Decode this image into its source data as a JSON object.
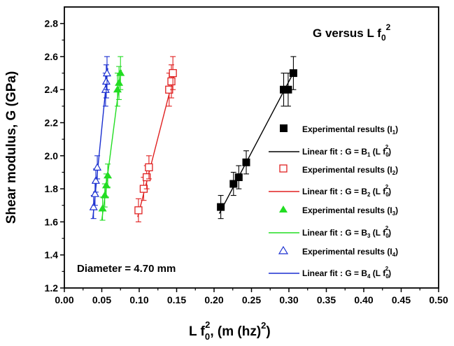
{
  "chart_data": {
    "type": "scatter",
    "title": "G versus L f",
    "title_sub": "0",
    "title_sup": "2",
    "annotation": "Diameter = 4.70 mm",
    "xlabel": {
      "main": "L f",
      "sub": "0",
      "sup": "2",
      "rest": ", (m (hz)",
      "rest_sup": "2",
      "end": ")"
    },
    "ylabel": "Shear modulus, G (GPa)",
    "xlim": [
      0.0,
      0.5
    ],
    "ylim": [
      1.2,
      2.9
    ],
    "xticks": [
      "0.00",
      "0.05",
      "0.10",
      "0.15",
      "0.20",
      "0.25",
      "0.30",
      "0.35",
      "0.40",
      "0.45",
      "0.50"
    ],
    "yticks": [
      "1.2",
      "1.4",
      "1.6",
      "1.8",
      "2.0",
      "2.2",
      "2.4",
      "2.6",
      "2.8"
    ],
    "legend_position": "right",
    "series": [
      {
        "name": "Experimental results (I1)",
        "label_main": "Experimental results (I",
        "label_sub": "1",
        "label_end": ")",
        "fit_main": "Linear fit : G = B",
        "fit_sub": "1",
        "fit_mid": " (L f",
        "fit_sub2": "0",
        "fit_sup": "2",
        "fit_end": ")",
        "color": "#000000",
        "marker": "square-filled",
        "x": [
          0.209,
          0.226,
          0.233,
          0.243,
          0.293,
          0.299,
          0.306
        ],
        "y": [
          1.69,
          1.83,
          1.87,
          1.96,
          2.4,
          2.4,
          2.5
        ],
        "err": [
          0.07,
          0.07,
          0.07,
          0.07,
          0.1,
          0.1,
          0.1
        ],
        "fit": [
          [
            0.207,
            1.65
          ],
          [
            0.307,
            2.51
          ]
        ]
      },
      {
        "name": "Experimental results (I2)",
        "label_main": "Experimental results (I",
        "label_sub": "2",
        "label_end": ")",
        "fit_main": "Linear fit : G = B",
        "fit_sub": "2",
        "fit_mid": " (L f",
        "fit_sub2": "0",
        "fit_sup": "2",
        "fit_end": ")",
        "color": "#e02020",
        "marker": "square-open",
        "x": [
          0.099,
          0.106,
          0.11,
          0.113,
          0.14,
          0.143,
          0.145
        ],
        "y": [
          1.67,
          1.8,
          1.87,
          1.93,
          2.4,
          2.45,
          2.5
        ],
        "err": [
          0.07,
          0.07,
          0.07,
          0.07,
          0.1,
          0.1,
          0.1
        ],
        "fit": [
          [
            0.098,
            1.63
          ],
          [
            0.146,
            2.48
          ]
        ]
      },
      {
        "name": "Experimental results (I3)",
        "label_main": "Experimental results (I",
        "label_sub": "3",
        "label_end": ")",
        "fit_main": "Linear fit : G = B",
        "fit_sub": "3",
        "fit_mid": " (L f",
        "fit_sub2": "0",
        "fit_sup": "2",
        "fit_end": ")",
        "color": "#22dd22",
        "marker": "triangle-filled",
        "x": [
          0.051,
          0.054,
          0.056,
          0.058,
          0.071,
          0.073,
          0.075
        ],
        "y": [
          1.68,
          1.76,
          1.82,
          1.88,
          2.4,
          2.44,
          2.5
        ],
        "err": [
          0.07,
          0.07,
          0.07,
          0.07,
          0.1,
          0.1,
          0.1
        ],
        "fit": [
          [
            0.05,
            1.61
          ],
          [
            0.076,
            2.52
          ]
        ]
      },
      {
        "name": "Experimental results (I4)",
        "label_main": "Experimental results (I",
        "label_sub": "4",
        "label_end": ")",
        "fit_main": "Linear fit : G = B",
        "fit_sub": "4",
        "fit_mid": " (L f",
        "fit_sub2": "0",
        "fit_sup": "2",
        "fit_end": ")",
        "color": "#1a2fd0",
        "marker": "triangle-open",
        "x": [
          0.039,
          0.041,
          0.042,
          0.044,
          0.055,
          0.056,
          0.057
        ],
        "y": [
          1.69,
          1.77,
          1.85,
          1.93,
          2.4,
          2.45,
          2.5
        ],
        "err": [
          0.07,
          0.07,
          0.07,
          0.07,
          0.1,
          0.1,
          0.1
        ],
        "fit": [
          [
            0.038,
            1.62
          ],
          [
            0.058,
            2.53
          ]
        ]
      }
    ]
  }
}
